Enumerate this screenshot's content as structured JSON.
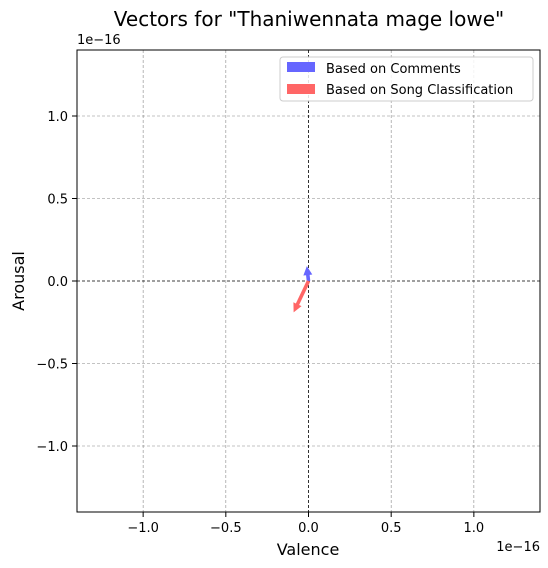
{
  "chart_data": {
    "type": "quiver",
    "title": "Vectors for \"Thaniwennata mage lowe\"",
    "xlabel": "Valence",
    "ylabel": "Arousal",
    "x_offset_label": "1e−16",
    "y_offset_label": "1e−16",
    "xlim": [
      -1.4,
      1.4
    ],
    "ylim": [
      -1.4,
      1.4
    ],
    "x_ticks": [
      -1.0,
      -0.5,
      0.0,
      0.5,
      1.0
    ],
    "y_ticks": [
      -1.0,
      -0.5,
      0.0,
      0.5,
      1.0
    ],
    "x_tick_labels": [
      "−1.0",
      "−0.5",
      "0.0",
      "0.5",
      "1.0"
    ],
    "y_tick_labels": [
      "−1.0",
      "−0.5",
      "0.0",
      "0.5",
      "1.0"
    ],
    "grid": true,
    "legend_position": "top-right",
    "series": [
      {
        "name": "Based on Comments",
        "color": "#6666ff",
        "origin": [
          0,
          0
        ],
        "vector": [
          -0.01,
          0.09
        ]
      },
      {
        "name": "Based on Song Classification",
        "color": "#ff6666",
        "origin": [
          0,
          0
        ],
        "vector": [
          -0.09,
          -0.19
        ]
      }
    ]
  }
}
